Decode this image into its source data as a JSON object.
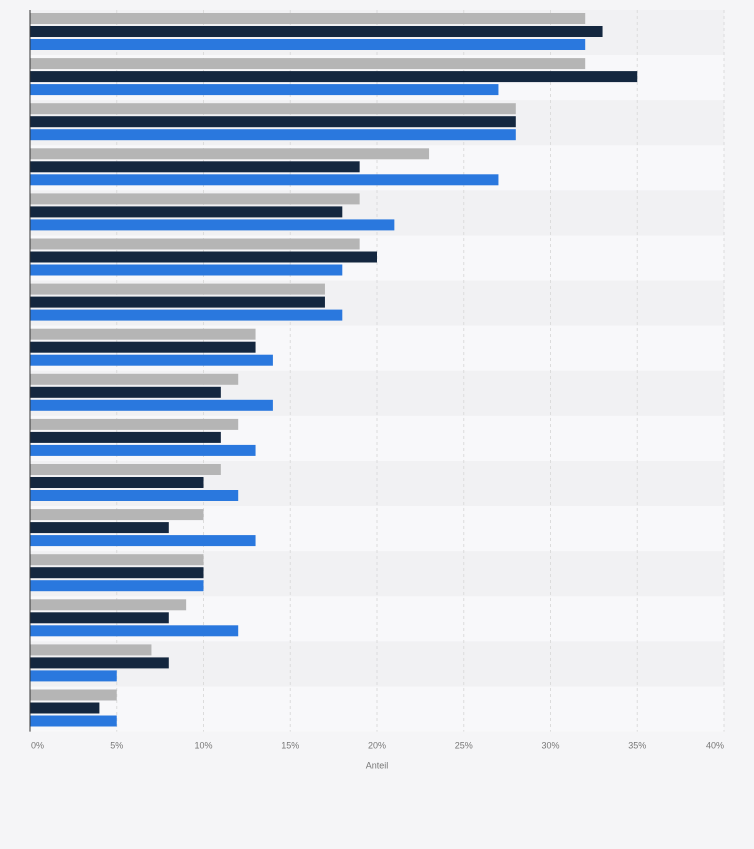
{
  "chart_data": {
    "type": "bar",
    "orientation": "horizontal",
    "xlabel": "Anteil",
    "ylabel": "",
    "xlim": [
      0,
      40
    ],
    "x_ticks": [
      "0%",
      "5%",
      "10%",
      "15%",
      "20%",
      "25%",
      "30%",
      "35%",
      "40%"
    ],
    "grid": true,
    "categories": [
      "",
      "",
      "",
      "",
      "",
      "",
      "",
      "",
      "",
      "",
      "",
      "",
      "",
      "",
      "",
      ""
    ],
    "series": [
      {
        "color": "#b5b5b5",
        "values": [
          32,
          32,
          28,
          23,
          19,
          19,
          17,
          13,
          12,
          12,
          11,
          10,
          10,
          9,
          7,
          5
        ]
      },
      {
        "color": "#14273f",
        "values": [
          33,
          35,
          28,
          19,
          18,
          20,
          17,
          13,
          11,
          11,
          10,
          8,
          10,
          8,
          8,
          4
        ]
      },
      {
        "color": "#2a78de",
        "values": [
          32,
          27,
          28,
          27,
          21,
          18,
          18,
          14,
          14,
          13,
          12,
          13,
          10,
          12,
          5,
          5
        ]
      }
    ]
  }
}
